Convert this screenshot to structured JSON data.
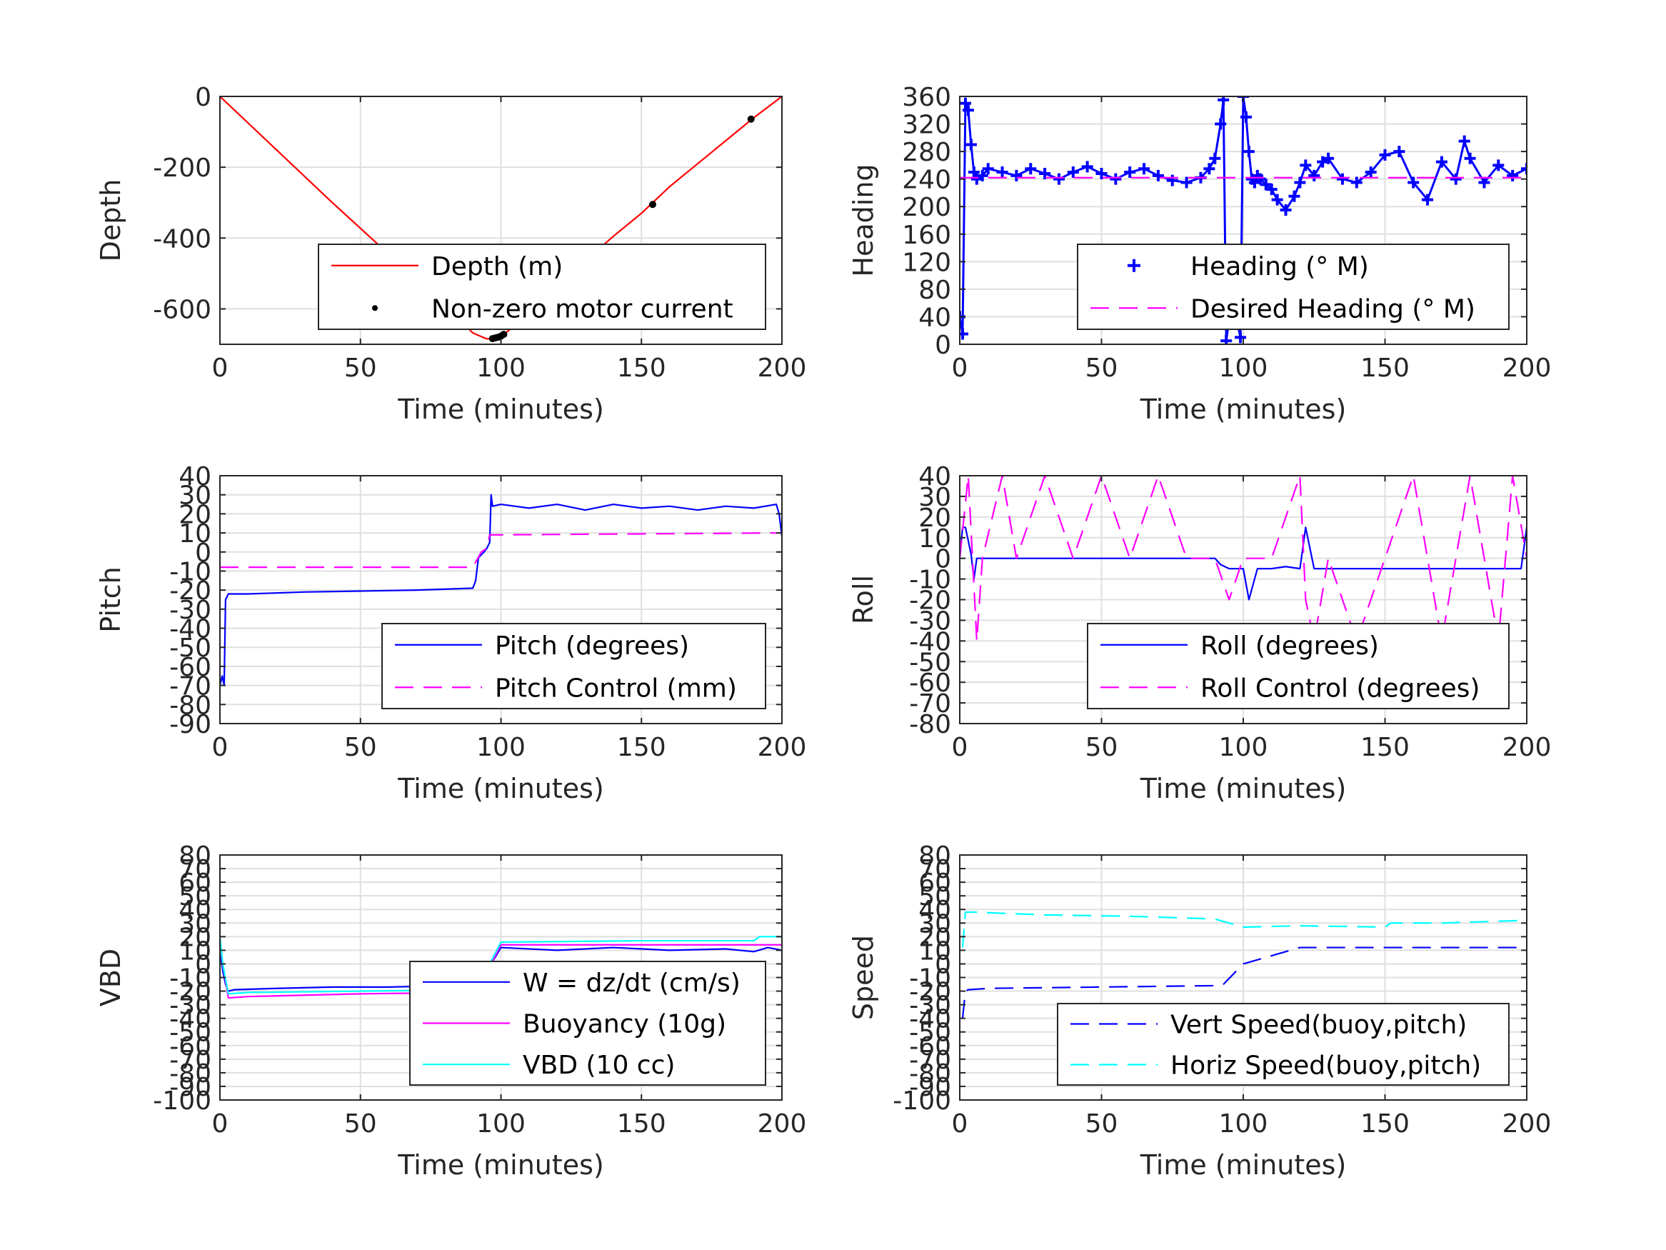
{
  "chart_data": [
    {
      "type": "line",
      "xlabel": "Time (minutes)",
      "ylabel": "Depth",
      "xlim": [
        0,
        200
      ],
      "ylim": [
        -700,
        0
      ],
      "xticks": [
        0,
        50,
        100,
        150,
        200
      ],
      "yticks": [
        0,
        -200,
        -400,
        -600
      ],
      "grid": true,
      "legend_position": "bottom-right",
      "series": [
        {
          "name": "Depth (m)",
          "color": "#ff0000",
          "style": "solid",
          "x": [
            0,
            20,
            40,
            60,
            80,
            90,
            95,
            100,
            110,
            120,
            130,
            140,
            150,
            160,
            170,
            180,
            190,
            200
          ],
          "y": [
            0,
            -150,
            -300,
            -445,
            -590,
            -668,
            -685,
            -680,
            -610,
            -540,
            -465,
            -395,
            -330,
            -255,
            -190,
            -125,
            -60,
            0
          ]
        },
        {
          "name": "Non-zero motor current",
          "color": "#000000",
          "style": "dots",
          "x": [
            97,
            98,
            99,
            100,
            101,
            154,
            189
          ],
          "y": [
            -684,
            -682,
            -680,
            -677,
            -672,
            -305,
            -64
          ]
        }
      ]
    },
    {
      "type": "line",
      "xlabel": "Time (minutes)",
      "ylabel": "Heading",
      "xlim": [
        0,
        200
      ],
      "ylim": [
        0,
        360
      ],
      "xticks": [
        0,
        50,
        100,
        150,
        200
      ],
      "yticks": [
        0,
        40,
        80,
        120,
        160,
        200,
        240,
        280,
        320,
        360
      ],
      "grid": true,
      "legend_position": "bottom-right",
      "series": [
        {
          "name": "Heading (° M)",
          "color": "#0000ff",
          "style": "plus",
          "x": [
            0,
            1,
            2,
            3,
            4,
            5,
            6,
            8,
            10,
            15,
            20,
            25,
            30,
            35,
            40,
            45,
            50,
            55,
            60,
            65,
            70,
            75,
            80,
            85,
            88,
            90,
            92,
            93,
            94,
            95,
            96,
            97,
            98,
            99,
            100,
            101,
            102,
            103,
            104,
            105,
            106,
            108,
            110,
            112,
            115,
            118,
            120,
            122,
            125,
            128,
            130,
            135,
            140,
            145,
            150,
            155,
            160,
            165,
            170,
            175,
            178,
            180,
            185,
            190,
            195,
            200
          ],
          "y": [
            40,
            15,
            350,
            340,
            290,
            250,
            240,
            245,
            255,
            250,
            245,
            255,
            248,
            240,
            250,
            258,
            248,
            240,
            250,
            255,
            245,
            238,
            235,
            242,
            255,
            270,
            320,
            355,
            5,
            35,
            60,
            50,
            30,
            10,
            360,
            330,
            280,
            240,
            235,
            245,
            240,
            232,
            225,
            210,
            195,
            215,
            235,
            260,
            245,
            265,
            270,
            240,
            235,
            250,
            275,
            280,
            235,
            210,
            265,
            240,
            295,
            270,
            235,
            260,
            245,
            255
          ]
        },
        {
          "name": "Desired Heading (° M)",
          "color": "#ff00ff",
          "style": "dashed",
          "x": [
            0,
            100,
            200
          ],
          "y": [
            242,
            242,
            242
          ]
        }
      ]
    },
    {
      "type": "line",
      "xlabel": "Time (minutes)",
      "ylabel": "Pitch",
      "xlim": [
        0,
        200
      ],
      "ylim": [
        -90,
        40
      ],
      "xticks": [
        0,
        50,
        100,
        150,
        200
      ],
      "yticks": [
        -90,
        -80,
        -70,
        -60,
        -50,
        -40,
        -30,
        -20,
        -10,
        0,
        10,
        20,
        30,
        40
      ],
      "grid": true,
      "legend_position": "bottom-right",
      "series": [
        {
          "name": "Pitch (degrees)",
          "color": "#0000ff",
          "style": "solid",
          "x": [
            0,
            0.8,
            1.5,
            2,
            3,
            10,
            30,
            50,
            70,
            90,
            91,
            92,
            94,
            95,
            96,
            96.5,
            97,
            100,
            110,
            120,
            130,
            140,
            150,
            160,
            170,
            180,
            190,
            198,
            199,
            200
          ],
          "y": [
            -70,
            -65,
            -70,
            -25,
            -22,
            -22,
            -21,
            -20.5,
            -20,
            -19,
            -15,
            -3,
            0,
            2,
            5,
            30,
            24,
            25,
            23,
            25,
            22,
            25,
            23,
            24,
            22,
            24,
            23,
            25,
            20,
            8
          ]
        },
        {
          "name": "Pitch Control (mm)",
          "color": "#ff00ff",
          "style": "dashed",
          "x": [
            0,
            90,
            93,
            95,
            96,
            100,
            150,
            200
          ],
          "y": [
            -8,
            -8,
            0,
            2,
            9,
            9,
            9.5,
            10
          ]
        }
      ]
    },
    {
      "type": "line",
      "xlabel": "Time (minutes)",
      "ylabel": "Roll",
      "xlim": [
        0,
        200
      ],
      "ylim": [
        -80,
        40
      ],
      "xticks": [
        0,
        50,
        100,
        150,
        200
      ],
      "yticks": [
        -80,
        -70,
        -60,
        -50,
        -40,
        -30,
        -20,
        -10,
        0,
        10,
        20,
        30,
        40
      ],
      "grid": true,
      "legend_position": "bottom-right",
      "series": [
        {
          "name": "Roll (degrees)",
          "color": "#0000ff",
          "style": "solid",
          "x": [
            0,
            1,
            2,
            4,
            5,
            6,
            10,
            20,
            30,
            40,
            50,
            60,
            70,
            80,
            90,
            92,
            95,
            100,
            102,
            105,
            110,
            115,
            120,
            122,
            125,
            130,
            140,
            150,
            160,
            170,
            180,
            190,
            195,
            198,
            200
          ],
          "y": [
            0,
            15,
            15,
            2,
            -10,
            0,
            0,
            0,
            0,
            0,
            0,
            0,
            0,
            0,
            0,
            -3,
            -5,
            -5,
            -20,
            -5,
            -5,
            -4,
            -5,
            15,
            -5,
            -5,
            -5,
            -5,
            -5,
            -5,
            -5,
            -5,
            -5,
            -5,
            15
          ]
        },
        {
          "name": "Roll Control (degrees)",
          "color": "#ff00ff",
          "style": "dashed",
          "x": [
            0,
            3,
            6,
            8,
            15,
            20,
            30,
            40,
            50,
            60,
            70,
            80,
            90,
            95,
            100,
            110,
            120,
            122,
            125,
            130,
            140,
            150,
            160,
            170,
            180,
            190,
            195,
            200
          ],
          "y": [
            0,
            40,
            -40,
            0,
            40,
            0,
            40,
            0,
            40,
            0,
            40,
            0,
            0,
            -20,
            0,
            0,
            40,
            -20,
            -40,
            0,
            -40,
            0,
            40,
            -40,
            40,
            -40,
            40,
            0
          ]
        }
      ]
    },
    {
      "type": "line",
      "xlabel": "Time (minutes)",
      "ylabel": "VBD",
      "xlim": [
        0,
        200
      ],
      "ylim": [
        -100,
        80
      ],
      "xticks": [
        0,
        50,
        100,
        150,
        200
      ],
      "yticks": [
        -100,
        -90,
        -80,
        -70,
        -60,
        -50,
        -40,
        -30,
        -20,
        -10,
        0,
        10,
        20,
        30,
        40,
        50,
        60,
        70,
        80
      ],
      "grid": true,
      "legend_position": "bottom-right",
      "series": [
        {
          "name": "W = dz/dt (cm/s)",
          "color": "#0000ff",
          "style": "solid",
          "x": [
            0,
            1,
            2,
            3,
            5,
            20,
            40,
            60,
            80,
            90,
            93,
            95,
            98,
            100,
            120,
            140,
            160,
            180,
            190,
            195,
            200
          ],
          "y": [
            10,
            -5,
            -15,
            -20,
            -19,
            -18,
            -17,
            -17,
            -16,
            -15,
            -12,
            -5,
            5,
            12,
            10,
            12,
            10,
            11,
            9,
            12,
            10
          ]
        },
        {
          "name": "Buoyancy (10g)",
          "color": "#ff00ff",
          "style": "solid",
          "x": [
            0,
            1,
            3,
            10,
            50,
            90,
            92,
            100,
            150,
            200
          ],
          "y": [
            15,
            0,
            -25,
            -24,
            -22,
            -21,
            -18,
            14,
            14,
            14
          ]
        },
        {
          "name": "VBD (10 cc)",
          "color": "#00ffff",
          "style": "solid",
          "x": [
            0,
            1,
            3,
            10,
            50,
            90,
            92,
            100,
            150,
            190,
            192,
            200
          ],
          "y": [
            20,
            0,
            -22,
            -21,
            -20,
            -19,
            -16,
            16,
            17,
            17,
            20,
            20
          ]
        }
      ]
    },
    {
      "type": "line",
      "xlabel": "Time (minutes)",
      "ylabel": "Speed",
      "xlim": [
        0,
        200
      ],
      "ylim": [
        -100,
        80
      ],
      "xticks": [
        0,
        50,
        100,
        150,
        200
      ],
      "yticks": [
        -100,
        -90,
        -80,
        -70,
        -60,
        -50,
        -40,
        -30,
        -20,
        -10,
        0,
        10,
        20,
        30,
        40,
        50,
        60,
        70,
        80
      ],
      "grid": true,
      "legend_position": "bottom-right",
      "series": [
        {
          "name": "Vert Speed(buoy,pitch)",
          "color": "#0000ff",
          "style": "dashed",
          "x": [
            1,
            2,
            3,
            10,
            50,
            90,
            93,
            100,
            120,
            150,
            180,
            200
          ],
          "y": [
            -40,
            -20,
            -19,
            -18,
            -17,
            -16,
            -15,
            0,
            12,
            12,
            12,
            12
          ]
        },
        {
          "name": "Horiz Speed(buoy,pitch)",
          "color": "#00ffff",
          "style": "dashed",
          "x": [
            1,
            2,
            5,
            30,
            60,
            90,
            100,
            120,
            150,
            152,
            170,
            200
          ],
          "y": [
            12,
            38,
            38,
            36,
            35,
            33,
            27,
            28,
            27,
            30,
            30,
            32
          ]
        }
      ]
    }
  ]
}
